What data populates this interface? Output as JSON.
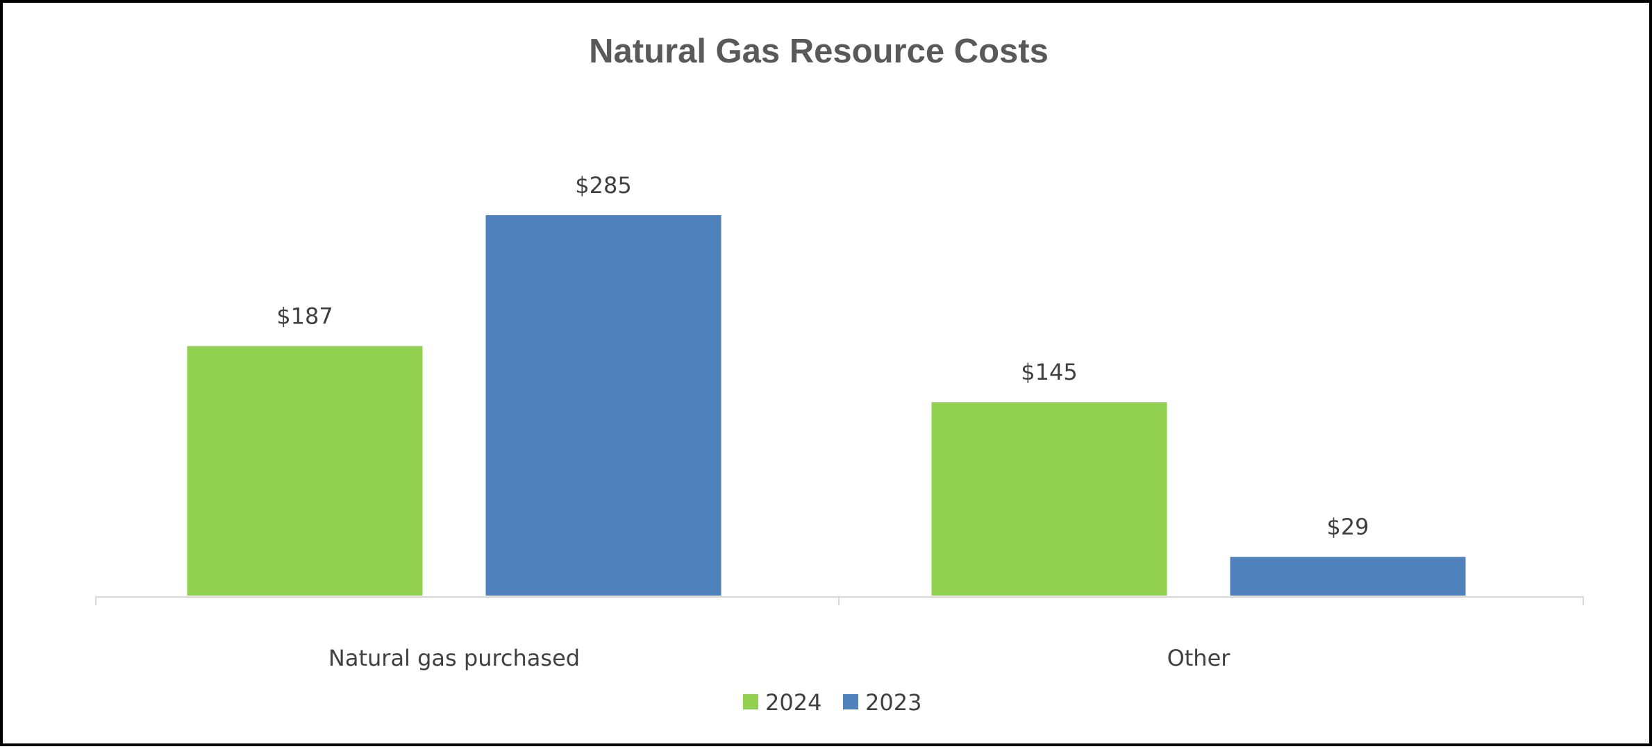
{
  "chart_data": {
    "type": "bar",
    "title": "Natural Gas Resource Costs",
    "categories": [
      "Natural gas purchased",
      "Other"
    ],
    "series": [
      {
        "name": "2024",
        "values": [
          187,
          145
        ],
        "labels": [
          "$187",
          "$145"
        ],
        "color": "#92D050"
      },
      {
        "name": "2023",
        "values": [
          285,
          29
        ],
        "labels": [
          "$285",
          "$29"
        ],
        "color": "#4F81BD"
      }
    ],
    "xlabel": "",
    "ylabel": "",
    "ylim": [
      0,
      285
    ],
    "grid": false,
    "legend": "bottom",
    "axis_color": "#D9D9D9"
  }
}
